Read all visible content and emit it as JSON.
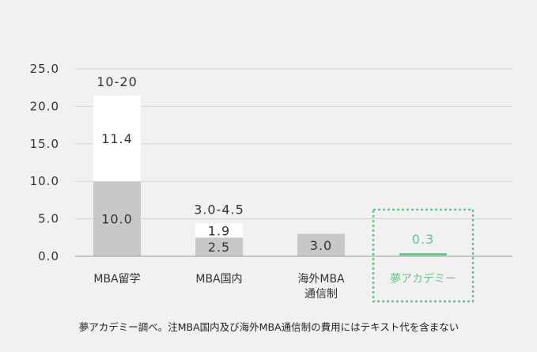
{
  "chart_data": {
    "type": "bar",
    "stacked": true,
    "ylim": [
      0,
      25
    ],
    "yticks": [
      0,
      5,
      10,
      15,
      20,
      25
    ],
    "ytick_labels": [
      "0.0",
      "5.0",
      "10.0",
      "15.0",
      "20.0",
      "25.0"
    ],
    "grid": true,
    "bars": [
      {
        "category_lines": [
          "MBA留学"
        ],
        "segments": [
          {
            "value": 10.0,
            "label": "10.0",
            "color": "#c8c8c8"
          },
          {
            "value": 11.4,
            "label": "11.4",
            "color": "#ffffff"
          }
        ],
        "range_label": "10-20"
      },
      {
        "category_lines": [
          "MBA国内"
        ],
        "segments": [
          {
            "value": 2.5,
            "label": "2.5",
            "color": "#c8c8c8"
          },
          {
            "value": 1.9,
            "label": "1.9",
            "color": "#ffffff"
          }
        ],
        "range_label": "3.0-4.5"
      },
      {
        "category_lines": [
          "海外MBA",
          "通信制"
        ],
        "segments": [
          {
            "value": 3.0,
            "label": "3.0",
            "color": "#c8c8c8"
          }
        ],
        "range_label": ""
      },
      {
        "category_lines": [
          "夢アカデミー"
        ],
        "segments": [
          {
            "value": 0.3,
            "label": "0.3",
            "color": "#6dbf8c"
          }
        ],
        "range_label": "",
        "highlight": true,
        "highlight_color": "#6dbf8c"
      }
    ],
    "colors": {
      "grid": "#d2d2d2",
      "axis": "#9a9a9a",
      "highlight": "#6dbf8c"
    },
    "footnote": "夢アカデミー調べ。注MBA国内及び海外MBA通信制の費用にはテキスト代を含まない"
  }
}
